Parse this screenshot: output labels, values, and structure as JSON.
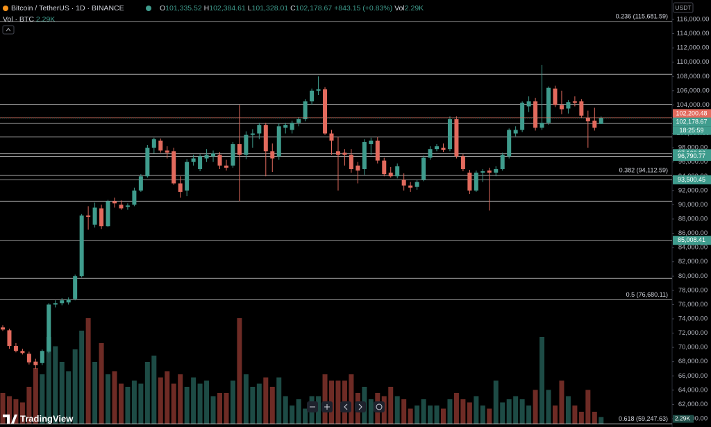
{
  "chart_data": {
    "type": "candlestick",
    "title": "Bitcoin / TetherUS · 1D · BINANCE",
    "legend": [
      {
        "key": "O",
        "value": "101,335.52"
      },
      {
        "key": "H",
        "value": "102,384.61"
      },
      {
        "key": "L",
        "value": "101,328.01"
      },
      {
        "key": "C",
        "value": "102,178.67"
      }
    ],
    "change": "+843.15 (+0.83%)",
    "vol_key": "Vol",
    "vol_value": "2.29K",
    "vol_title": "Vol · BTC",
    "vol_title_value": "2.29K",
    "currency": "USDT",
    "brand": "TradingView",
    "up_color": "#3f9c8d",
    "down_color": "#e26a5d",
    "vol_up_color": "#1d4b45",
    "vol_down_color": "#6e2b25",
    "open": [
      72800,
      72400,
      70200,
      69500,
      69100,
      68000,
      67800,
      69400,
      76000,
      76200,
      76300,
      76800,
      80000,
      88500,
      87200,
      89500,
      87000,
      90500,
      90000,
      89700,
      90000,
      92000,
      94000,
      98000,
      99000,
      97600,
      97500,
      93000,
      92000,
      96000,
      95000,
      96500,
      96800,
      97000,
      95500,
      95500,
      98500,
      97000,
      99800,
      100000,
      101200,
      97500,
      96800,
      100800,
      100500,
      101500,
      102000,
      104500,
      106000,
      106200,
      100000,
      97500,
      97300,
      97000,
      95500,
      95000,
      98500,
      99000,
      96200,
      94500,
      94000,
      93500,
      92700,
      92500,
      93500,
      96600,
      97800,
      98000,
      97800,
      102000,
      96800,
      94500,
      92000,
      94500,
      94800,
      94500,
      95000,
      96800,
      100000,
      100500,
      103800,
      104500,
      100800,
      101500,
      106300,
      104000,
      103500,
      104500,
      104500,
      102200,
      101800,
      101335.52
    ],
    "high": [
      73100,
      72600,
      70600,
      69800,
      69400,
      68400,
      69700,
      76200,
      76600,
      76900,
      77000,
      80200,
      88700,
      89800,
      90300,
      90000,
      90700,
      91000,
      90600,
      90200,
      92400,
      94300,
      98400,
      99400,
      99300,
      98200,
      98000,
      94000,
      96400,
      97000,
      97100,
      97800,
      97600,
      97400,
      96300,
      98800,
      104000,
      100300,
      100600,
      101500,
      101500,
      98600,
      101400,
      101500,
      101800,
      102300,
      104800,
      106300,
      108000,
      106500,
      100500,
      99500,
      97800,
      97800,
      96000,
      99200,
      99400,
      99500,
      96600,
      95300,
      95800,
      94400,
      93200,
      93500,
      96900,
      98200,
      98500,
      98600,
      102400,
      102400,
      97100,
      94900,
      94800,
      95000,
      95200,
      95400,
      97300,
      100700,
      101000,
      104500,
      105200,
      105000,
      109600,
      106600,
      106700,
      106000,
      104700,
      105200,
      104800,
      103200,
      103600,
      102384.61
    ],
    "low": [
      72300,
      69800,
      69300,
      69000,
      67600,
      67000,
      67500,
      69200,
      75600,
      75900,
      76000,
      76600,
      79800,
      86500,
      86800,
      86600,
      86900,
      89600,
      89300,
      89300,
      89800,
      91800,
      93800,
      97200,
      97300,
      96500,
      92800,
      91000,
      91200,
      95500,
      94700,
      96000,
      96000,
      95000,
      94800,
      95200,
      90500,
      96400,
      98000,
      99200,
      94000,
      94600,
      96300,
      100000,
      100000,
      101000,
      101700,
      104000,
      105400,
      99800,
      97000,
      92000,
      95500,
      94500,
      93000,
      94200,
      97000,
      95800,
      94000,
      93800,
      93700,
      92000,
      91800,
      92100,
      93300,
      96300,
      97500,
      97400,
      97500,
      96500,
      94700,
      91500,
      91800,
      93200,
      89200,
      94000,
      94800,
      96500,
      99600,
      100200,
      103000,
      100400,
      100500,
      101200,
      103700,
      102700,
      102800,
      103800,
      102200,
      98000,
      100400,
      101328.01
    ],
    "close": [
      72500,
      70200,
      69500,
      69200,
      67900,
      67500,
      69500,
      76000,
      76200,
      76600,
      76700,
      80000,
      88500,
      88300,
      89600,
      87000,
      90500,
      90200,
      89500,
      89900,
      92000,
      94000,
      98000,
      99200,
      97600,
      97300,
      93000,
      91800,
      96000,
      96500,
      96800,
      97000,
      97200,
      95500,
      95200,
      98500,
      97000,
      99800,
      100000,
      101200,
      97500,
      96500,
      101000,
      101200,
      101500,
      102000,
      104500,
      106000,
      106200,
      100000,
      99000,
      97000,
      97000,
      95000,
      94800,
      98800,
      99000,
      96200,
      94300,
      94000,
      95400,
      92700,
      92400,
      93200,
      96600,
      97800,
      98200,
      97700,
      102000,
      96800,
      95000,
      92000,
      94500,
      94700,
      94500,
      95000,
      97000,
      100500,
      100500,
      104300,
      104500,
      100800,
      101500,
      106400,
      104000,
      103400,
      104400,
      104300,
      102500,
      101700,
      100800,
      102178.67
    ],
    "volume": [
      10,
      9,
      8,
      7,
      12,
      18,
      16,
      28,
      25,
      20,
      17,
      24,
      30,
      34,
      20,
      26,
      16,
      17,
      13,
      12,
      14,
      13,
      20,
      22,
      15,
      17,
      13,
      16,
      12,
      15,
      13,
      14,
      9,
      10,
      10,
      14,
      34,
      16,
      12,
      13,
      15,
      12,
      15,
      9,
      6,
      8,
      5,
      9,
      9,
      16,
      14,
      14,
      14,
      16,
      10,
      12,
      8,
      10,
      9,
      12,
      9,
      8,
      5,
      6,
      8,
      6,
      6,
      5,
      8,
      10,
      8,
      7,
      9,
      6,
      5,
      14,
      7,
      8,
      9,
      8,
      6,
      11,
      28,
      11,
      6,
      14,
      9,
      6,
      4,
      11,
      4,
      2.29
    ],
    "volume_last_label": "2.29K",
    "vlim": [
      0,
      40
    ],
    "ylim": [
      58830,
      116580
    ],
    "yticks": [
      {
        "value": 60000,
        "label": "60,000.00"
      },
      {
        "value": 62000,
        "label": "62,000.00"
      },
      {
        "value": 64000,
        "label": "64,000.00"
      },
      {
        "value": 66000,
        "label": "66,000.00"
      },
      {
        "value": 68000,
        "label": "68,000.00"
      },
      {
        "value": 70000,
        "label": "70,000.00"
      },
      {
        "value": 72000,
        "label": "72,000.00"
      },
      {
        "value": 74000,
        "label": "74,000.00"
      },
      {
        "value": 76000,
        "label": "76,000.00"
      },
      {
        "value": 78000,
        "label": "78,000.00"
      },
      {
        "value": 80000,
        "label": "80,000.00"
      },
      {
        "value": 82000,
        "label": "82,000.00"
      },
      {
        "value": 84000,
        "label": "84,000.00"
      },
      {
        "value": 86000,
        "label": "86,000.00"
      },
      {
        "value": 88000,
        "label": "88,000.00"
      },
      {
        "value": 90000,
        "label": "90,000.00"
      },
      {
        "value": 92000,
        "label": "92,000.00"
      },
      {
        "value": 94000,
        "label": "94,000.00"
      },
      {
        "value": 96000,
        "label": "96,000.00"
      },
      {
        "value": 98000,
        "label": "98,000.00"
      },
      {
        "value": 100000,
        "label": "100,000.00"
      },
      {
        "value": 102000,
        "label": "102,000.00"
      },
      {
        "value": 104000,
        "label": "104,000.00"
      },
      {
        "value": 106000,
        "label": "106,000.00"
      },
      {
        "value": 108000,
        "label": "108,000.00"
      },
      {
        "value": 110000,
        "label": "110,000.00"
      },
      {
        "value": 112000,
        "label": "112,000.00"
      },
      {
        "value": 114000,
        "label": "114,000.00"
      },
      {
        "value": 116000,
        "label": "116,000.00"
      }
    ],
    "levels": [
      {
        "value": 115681.59,
        "label": "0.236 (115,681.59)"
      },
      {
        "value": 108300
      },
      {
        "value": 104100
      },
      {
        "value": 101400
      },
      {
        "value": 99500
      },
      {
        "value": 97160.26,
        "tag": "97,160.26"
      },
      {
        "value": 96790.77,
        "tag": "96,790.77"
      },
      {
        "value": 94112.59,
        "label": "0.382 (94,112.59)"
      },
      {
        "value": 93500.45,
        "tag": "93,500.45"
      },
      {
        "value": 90500
      },
      {
        "value": 85008.41,
        "tag": "85,008.41"
      },
      {
        "value": 79700
      },
      {
        "value": 76680.11,
        "label": "0.5 (76,680.11)"
      },
      {
        "value": 59247.63,
        "label": "0.618 (59,247.63)"
      }
    ],
    "prev_price": {
      "value": 102200.48,
      "label": "102,200.48"
    },
    "last_price": {
      "value": 102178.67,
      "label": "102,178.67",
      "countdown": "18:25:59"
    },
    "grid": false
  }
}
